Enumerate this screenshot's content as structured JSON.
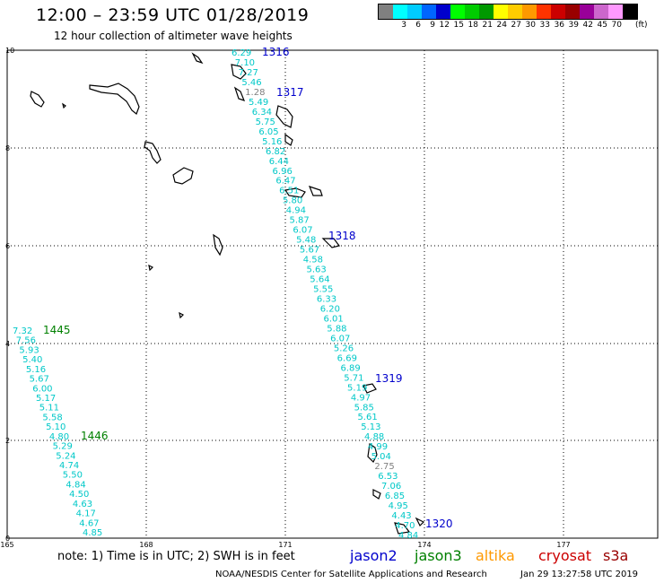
{
  "header": {
    "title": "12:00 – 23:59 UTC 01/28/2019",
    "subtitle": "12 hour collection of altimeter wave heights"
  },
  "legend": {
    "colors": [
      "#808080",
      "#00ffff",
      "#00ccff",
      "#0066ff",
      "#0000cc",
      "#00ff00",
      "#00cc00",
      "#009900",
      "#ffff00",
      "#ffcc00",
      "#ff9900",
      "#ff3300",
      "#cc0000",
      "#990000",
      "#990099",
      "#cc66cc",
      "#ff99ff",
      "#000000"
    ],
    "labels": [
      "",
      "3",
      "6",
      "9",
      "12",
      "15",
      "18",
      "21",
      "24",
      "27",
      "30",
      "33",
      "36",
      "39",
      "42",
      "45",
      "70"
    ],
    "unit": "(ft)"
  },
  "axes": {
    "x_labels": [
      "165",
      "168",
      "171",
      "174",
      "177"
    ],
    "y_labels": [
      "0",
      "2",
      "4",
      "6",
      "8",
      "10"
    ]
  },
  "passes": [
    {
      "id": "1316",
      "color": "#0000cc"
    },
    {
      "id": "1317",
      "color": "#0000cc"
    },
    {
      "id": "1318",
      "color": "#0000cc"
    },
    {
      "id": "1319",
      "color": "#0000cc"
    },
    {
      "id": "1320",
      "color": "#0000cc"
    },
    {
      "id": "1445",
      "color": "#008000"
    },
    {
      "id": "1446",
      "color": "#008000"
    }
  ],
  "track_main": {
    "color": "#00c8c8",
    "values": [
      "6.29",
      "7.10",
      "7.27",
      "5.46",
      "1.28",
      "5.49",
      "6.34",
      "5.75",
      "6.05",
      "5.16",
      "6.82",
      "6.44",
      "6.96",
      "6.47",
      "6.51",
      "5.80",
      "4.94",
      "5.87",
      "6.07",
      "5.48",
      "5.67",
      "4.58",
      "5.63",
      "5.64",
      "5.55",
      "6.33",
      "6.20",
      "6.01",
      "5.88",
      "6.07",
      "5.26",
      "6.69",
      "6.89",
      "5.71",
      "5.19",
      "4.97",
      "5.85",
      "5.61",
      "5.13",
      "4.88",
      "4.99",
      "5.04",
      "2.75",
      "6.53",
      "7.06",
      "6.85",
      "4.95",
      "4.43",
      "4.70",
      "4.84"
    ]
  },
  "track_left": {
    "color": "#00c8c8",
    "values": [
      "7.32",
      "7.56",
      "5.93",
      "5.40",
      "5.16",
      "5.67",
      "6.00",
      "5.17",
      "5.11",
      "5.58",
      "5.10",
      "4.80",
      "5.29",
      "5.24",
      "4.74",
      "5.50",
      "4.84",
      "4.50",
      "4.63",
      "4.17",
      "4.67",
      "4.85"
    ]
  },
  "footer": {
    "note": "note:  1) Time is in UTC;  2) SWH is in feet",
    "satellites": [
      {
        "name": "jason2",
        "color": "#0000cc"
      },
      {
        "name": "jason3",
        "color": "#008000"
      },
      {
        "name": "altika",
        "color": "#ff9900"
      },
      {
        "name": "cryosat",
        "color": "#cc0000"
      },
      {
        "name": "s3a",
        "color": "#990000"
      }
    ],
    "credit": "NOAA/NESDIS Center for Satellite Applications and Research",
    "stamp": "Jan 29 13:27:58 UTC 2019"
  }
}
